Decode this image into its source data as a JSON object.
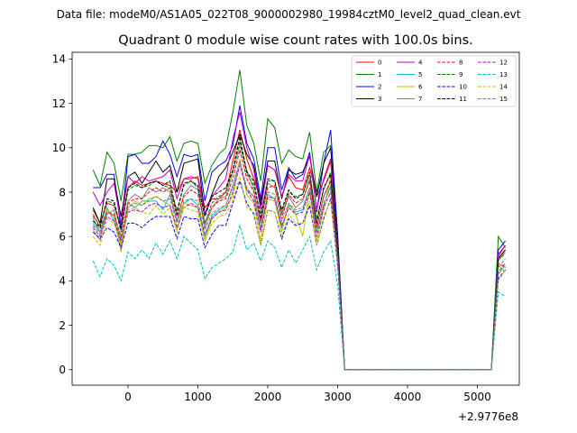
{
  "figure": {
    "suptitle": "Data file: modeM0/AS1A05_022T08_9000002980_19984cztM0_level2_quad_clean.evt",
    "offset_label": "+2.9776e8"
  },
  "chart_data": {
    "type": "line",
    "title": "Quadrant 0 module wise count rates with 100.0s bins.",
    "xlabel": "",
    "ylabel": "",
    "xlim": [
      -800,
      5600
    ],
    "ylim": [
      -0.7,
      14.3
    ],
    "x_offset": 297760000,
    "xticks": [
      0,
      1000,
      2000,
      3000,
      4000,
      5000
    ],
    "yticks": [
      0,
      2,
      4,
      6,
      8,
      10,
      12,
      14
    ],
    "grid": false,
    "legend_position": "top-right",
    "x": [
      -500,
      -400,
      -300,
      -200,
      -100,
      0,
      100,
      200,
      300,
      400,
      500,
      600,
      700,
      800,
      900,
      1000,
      1100,
      1200,
      1300,
      1400,
      1500,
      1600,
      1700,
      1800,
      1900,
      2000,
      2100,
      2200,
      2300,
      2400,
      2500,
      2600,
      2700,
      2800,
      2900,
      3000,
      3100,
      3200,
      3300,
      3400,
      3500,
      3600,
      3700,
      3800,
      3900,
      4000,
      4100,
      4200,
      4300,
      4400,
      4500,
      4600,
      4700,
      4800,
      4900,
      5000,
      5100,
      5200,
      5300,
      5400
    ],
    "series": [
      {
        "name": "0",
        "color": "#ff0000",
        "dash": "solid",
        "values": [
          7.2,
          6.6,
          7.5,
          7.4,
          6.4,
          8.2,
          8.5,
          8.3,
          8.4,
          8.5,
          8.4,
          8.3,
          8.0,
          8.6,
          8.6,
          8.7,
          7.3,
          7.7,
          7.7,
          8.0,
          9.4,
          10.8,
          9.5,
          8.6,
          7.6,
          9.2,
          9.0,
          7.8,
          8.7,
          8.2,
          8.1,
          9.1,
          7.8,
          8.5,
          9.4,
          5.5,
          0,
          0,
          0,
          0,
          0,
          0,
          0,
          0,
          0,
          0,
          0,
          0,
          0,
          0,
          0,
          0,
          0,
          0,
          0,
          0,
          0,
          0,
          5.1,
          5.6
        ]
      },
      {
        "name": "1",
        "color": "#008000",
        "dash": "solid",
        "values": [
          9.0,
          8.3,
          9.8,
          9.3,
          7.6,
          9.7,
          9.7,
          9.8,
          10.1,
          10.1,
          10.0,
          10.5,
          9.4,
          10.2,
          10.3,
          10.2,
          8.4,
          9.2,
          9.7,
          10.0,
          11.6,
          13.5,
          11.0,
          10.2,
          8.5,
          11.3,
          10.9,
          9.3,
          9.9,
          9.6,
          9.5,
          10.7,
          8.0,
          9.8,
          10.1,
          6.0,
          0,
          0,
          0,
          0,
          0,
          0,
          0,
          0,
          0,
          0,
          0,
          0,
          0,
          0,
          0,
          0,
          0,
          0,
          0,
          0,
          0,
          0,
          6.0,
          5.5
        ]
      },
      {
        "name": "2",
        "color": "#0000ff",
        "dash": "solid",
        "values": [
          8.2,
          8.2,
          8.8,
          8.8,
          6.3,
          9.6,
          9.7,
          9.3,
          9.3,
          9.6,
          10.3,
          9.7,
          8.7,
          9.7,
          9.6,
          9.7,
          7.6,
          8.9,
          9.2,
          9.4,
          10.1,
          11.9,
          10.2,
          9.5,
          7.7,
          10.0,
          10.0,
          8.1,
          9.1,
          8.6,
          8.8,
          9.8,
          7.1,
          9.3,
          10.8,
          6.1,
          0,
          0,
          0,
          0,
          0,
          0,
          0,
          0,
          0,
          0,
          0,
          0,
          0,
          0,
          0,
          0,
          0,
          0,
          0,
          0,
          0,
          0,
          5.4,
          5.8
        ]
      },
      {
        "name": "3",
        "color": "#000000",
        "dash": "solid",
        "values": [
          7.3,
          6.6,
          8.6,
          8.6,
          6.9,
          8.7,
          8.9,
          8.4,
          8.9,
          9.4,
          8.9,
          9.2,
          8.0,
          9.3,
          9.4,
          9.5,
          7.0,
          7.9,
          8.7,
          9.1,
          9.8,
          10.6,
          9.7,
          9.2,
          7.4,
          9.4,
          9.4,
          7.7,
          9.0,
          8.8,
          8.9,
          9.6,
          7.8,
          9.3,
          10.0,
          5.8,
          0,
          0,
          0,
          0,
          0,
          0,
          0,
          0,
          0,
          0,
          0,
          0,
          0,
          0,
          0,
          0,
          0,
          0,
          0,
          0,
          0,
          0,
          5.0,
          5.4
        ]
      },
      {
        "name": "4",
        "color": "#bf00bf",
        "dash": "solid",
        "values": [
          8.0,
          7.4,
          8.0,
          8.4,
          6.6,
          8.7,
          8.4,
          8.7,
          8.5,
          8.6,
          8.7,
          9.0,
          7.7,
          8.6,
          8.7,
          8.6,
          7.0,
          7.8,
          8.2,
          8.6,
          10.4,
          11.6,
          10.0,
          9.0,
          7.2,
          9.2,
          9.0,
          7.8,
          8.8,
          8.5,
          8.5,
          9.7,
          7.2,
          8.6,
          9.5,
          5.5,
          0,
          0,
          0,
          0,
          0,
          0,
          0,
          0,
          0,
          0,
          0,
          0,
          0,
          0,
          0,
          0,
          0,
          0,
          0,
          0,
          0,
          0,
          5.2,
          5.6
        ]
      },
      {
        "name": "5",
        "color": "#00bfbf",
        "dash": "solid",
        "values": [
          6.6,
          6.2,
          7.3,
          6.7,
          5.6,
          7.5,
          7.3,
          7.6,
          7.6,
          7.6,
          7.2,
          7.9,
          6.7,
          7.5,
          7.7,
          7.4,
          6.0,
          6.9,
          7.2,
          7.4,
          8.3,
          9.4,
          8.1,
          7.8,
          6.3,
          7.9,
          7.7,
          6.4,
          7.4,
          7.1,
          7.2,
          8.2,
          6.2,
          7.4,
          8.3,
          5.0,
          0,
          0,
          0,
          0,
          0,
          0,
          0,
          0,
          0,
          0,
          0,
          0,
          0,
          0,
          0,
          0,
          0,
          0,
          0,
          0,
          0,
          0,
          4.3,
          4.7
        ]
      },
      {
        "name": "6",
        "color": "#bfbf00",
        "dash": "solid",
        "values": [
          6.3,
          5.8,
          7.2,
          6.9,
          5.3,
          7.3,
          7.6,
          7.4,
          7.7,
          7.8,
          7.6,
          7.4,
          6.3,
          7.5,
          7.4,
          7.3,
          5.8,
          6.8,
          7.1,
          7.3,
          7.8,
          9.5,
          7.9,
          7.5,
          5.8,
          7.7,
          7.6,
          6.2,
          7.5,
          7.0,
          6.0,
          8.1,
          5.8,
          7.2,
          8.7,
          5.0,
          0,
          0,
          0,
          0,
          0,
          0,
          0,
          0,
          0,
          0,
          0,
          0,
          0,
          0,
          0,
          0,
          0,
          0,
          0,
          0,
          0,
          0,
          4.7,
          4.4
        ]
      },
      {
        "name": "7",
        "color": "#7f7f7f",
        "dash": "solid",
        "values": [
          6.8,
          6.2,
          7.0,
          7.2,
          5.6,
          7.6,
          7.9,
          7.7,
          8.2,
          8.0,
          8.2,
          8.0,
          6.7,
          7.9,
          8.3,
          8.1,
          6.4,
          7.3,
          7.7,
          7.8,
          8.9,
          10.1,
          9.0,
          8.1,
          6.6,
          8.4,
          8.2,
          7.0,
          7.8,
          7.3,
          7.6,
          8.6,
          6.4,
          7.8,
          8.5,
          5.2,
          0,
          0,
          0,
          0,
          0,
          0,
          0,
          0,
          0,
          0,
          0,
          0,
          0,
          0,
          0,
          0,
          0,
          0,
          0,
          0,
          0,
          0,
          4.9,
          5.3
        ]
      },
      {
        "name": "8",
        "color": "#ff0000",
        "dash": "dashed",
        "values": [
          7.0,
          6.4,
          7.1,
          7.0,
          6.0,
          7.5,
          7.7,
          7.7,
          8.0,
          8.2,
          8.0,
          8.2,
          6.9,
          7.8,
          8.1,
          7.9,
          6.6,
          7.3,
          7.6,
          7.7,
          8.6,
          9.9,
          8.6,
          8.0,
          6.7,
          8.2,
          8.3,
          6.8,
          7.9,
          7.5,
          7.7,
          8.5,
          6.4,
          7.8,
          8.5,
          5.1,
          0,
          0,
          0,
          0,
          0,
          0,
          0,
          0,
          0,
          0,
          0,
          0,
          0,
          0,
          0,
          0,
          0,
          0,
          0,
          0,
          0,
          0,
          4.8,
          4.6
        ]
      },
      {
        "name": "9",
        "color": "#008000",
        "dash": "dashed",
        "values": [
          6.9,
          6.5,
          7.6,
          7.5,
          6.2,
          8.1,
          8.3,
          8.2,
          8.3,
          8.5,
          8.3,
          8.2,
          7.2,
          8.3,
          8.5,
          8.2,
          6.6,
          7.5,
          7.8,
          8.0,
          9.0,
          10.3,
          8.8,
          8.3,
          7.0,
          8.5,
          8.5,
          7.1,
          8.0,
          7.8,
          7.9,
          8.8,
          6.8,
          8.1,
          8.9,
          5.4,
          0,
          0,
          0,
          0,
          0,
          0,
          0,
          0,
          0,
          0,
          0,
          0,
          0,
          0,
          0,
          0,
          0,
          0,
          0,
          0,
          0,
          0,
          5.0,
          5.2
        ]
      },
      {
        "name": "10",
        "color": "#0000ff",
        "dash": "dashed",
        "values": [
          6.2,
          5.9,
          6.4,
          6.2,
          5.5,
          6.6,
          6.6,
          6.4,
          6.7,
          6.9,
          6.9,
          6.9,
          5.9,
          6.9,
          6.8,
          6.8,
          5.5,
          6.1,
          6.5,
          6.5,
          7.5,
          8.5,
          7.5,
          7.0,
          5.6,
          7.2,
          7.1,
          5.9,
          6.8,
          6.5,
          6.6,
          7.4,
          5.6,
          6.8,
          7.7,
          4.7,
          0,
          0,
          0,
          0,
          0,
          0,
          0,
          0,
          0,
          0,
          0,
          0,
          0,
          0,
          0,
          0,
          0,
          0,
          0,
          0,
          0,
          0,
          4.1,
          4.5
        ]
      },
      {
        "name": "11",
        "color": "#000000",
        "dash": "dashed",
        "values": [
          6.7,
          6.4,
          7.7,
          7.6,
          6.3,
          8.2,
          8.4,
          8.2,
          8.4,
          8.5,
          8.3,
          8.5,
          7.0,
          8.4,
          8.5,
          8.3,
          6.9,
          7.8,
          8.0,
          8.2,
          9.0,
          10.5,
          8.9,
          8.5,
          6.8,
          8.6,
          8.5,
          7.2,
          8.1,
          7.7,
          7.9,
          8.9,
          6.6,
          8.2,
          8.8,
          5.3,
          0,
          0,
          0,
          0,
          0,
          0,
          0,
          0,
          0,
          0,
          0,
          0,
          0,
          0,
          0,
          0,
          0,
          0,
          0,
          0,
          0,
          0,
          5.0,
          5.4
        ]
      },
      {
        "name": "12",
        "color": "#bf00bf",
        "dash": "dashed",
        "values": [
          6.4,
          6.0,
          6.9,
          6.7,
          5.8,
          7.1,
          7.2,
          7.1,
          7.4,
          7.5,
          7.3,
          7.4,
          6.4,
          7.3,
          7.5,
          7.3,
          6.1,
          6.8,
          7.1,
          7.2,
          8.0,
          9.2,
          8.1,
          7.6,
          6.2,
          7.8,
          7.7,
          6.5,
          7.3,
          7.0,
          7.1,
          8.0,
          6.0,
          7.3,
          8.0,
          4.9,
          0,
          0,
          0,
          0,
          0,
          0,
          0,
          0,
          0,
          0,
          0,
          0,
          0,
          0,
          0,
          0,
          0,
          0,
          0,
          0,
          0,
          0,
          4.4,
          4.8
        ]
      },
      {
        "name": "13",
        "color": "#00bfbf",
        "dash": "dashed",
        "values": [
          4.9,
          4.2,
          5.0,
          4.7,
          4.0,
          5.3,
          5.0,
          5.4,
          5.0,
          5.7,
          5.2,
          5.8,
          5.0,
          6.0,
          5.7,
          5.4,
          4.1,
          4.6,
          4.8,
          5.0,
          5.3,
          6.5,
          5.4,
          5.7,
          4.9,
          5.8,
          5.5,
          4.6,
          5.4,
          4.8,
          5.4,
          6.0,
          4.5,
          5.3,
          5.8,
          3.8,
          0,
          0,
          0,
          0,
          0,
          0,
          0,
          0,
          0,
          0,
          0,
          0,
          0,
          0,
          0,
          0,
          0,
          0,
          0,
          0,
          0,
          0,
          3.5,
          3.3
        ]
      },
      {
        "name": "14",
        "color": "#bfbf00",
        "dash": "dashed",
        "values": [
          6.0,
          5.6,
          6.8,
          6.6,
          5.6,
          7.2,
          7.3,
          7.1,
          7.0,
          7.4,
          7.0,
          7.3,
          6.2,
          7.3,
          7.2,
          7.1,
          5.8,
          6.6,
          6.9,
          7.0,
          7.6,
          8.7,
          7.3,
          7.1,
          5.6,
          7.2,
          7.1,
          6.0,
          7.0,
          6.6,
          6.6,
          7.6,
          5.6,
          6.9,
          7.6,
          4.8,
          0,
          0,
          0,
          0,
          0,
          0,
          0,
          0,
          0,
          0,
          0,
          0,
          0,
          0,
          0,
          0,
          0,
          0,
          0,
          0,
          0,
          0,
          4.0,
          4.5
        ]
      },
      {
        "name": "15",
        "color": "#7f7f7f",
        "dash": "dashed",
        "values": [
          6.5,
          6.1,
          7.1,
          6.9,
          5.9,
          7.3,
          7.5,
          7.4,
          7.6,
          7.8,
          7.6,
          7.7,
          6.6,
          7.6,
          7.7,
          7.6,
          6.3,
          7.0,
          7.3,
          7.4,
          8.2,
          9.4,
          8.2,
          7.8,
          6.4,
          8.0,
          7.9,
          6.7,
          7.5,
          7.2,
          7.3,
          8.2,
          6.2,
          7.5,
          8.2,
          5.0,
          0,
          0,
          0,
          0,
          0,
          0,
          0,
          0,
          0,
          0,
          0,
          0,
          0,
          0,
          0,
          0,
          0,
          0,
          0,
          0,
          0,
          0,
          4.6,
          5.0
        ]
      }
    ]
  }
}
